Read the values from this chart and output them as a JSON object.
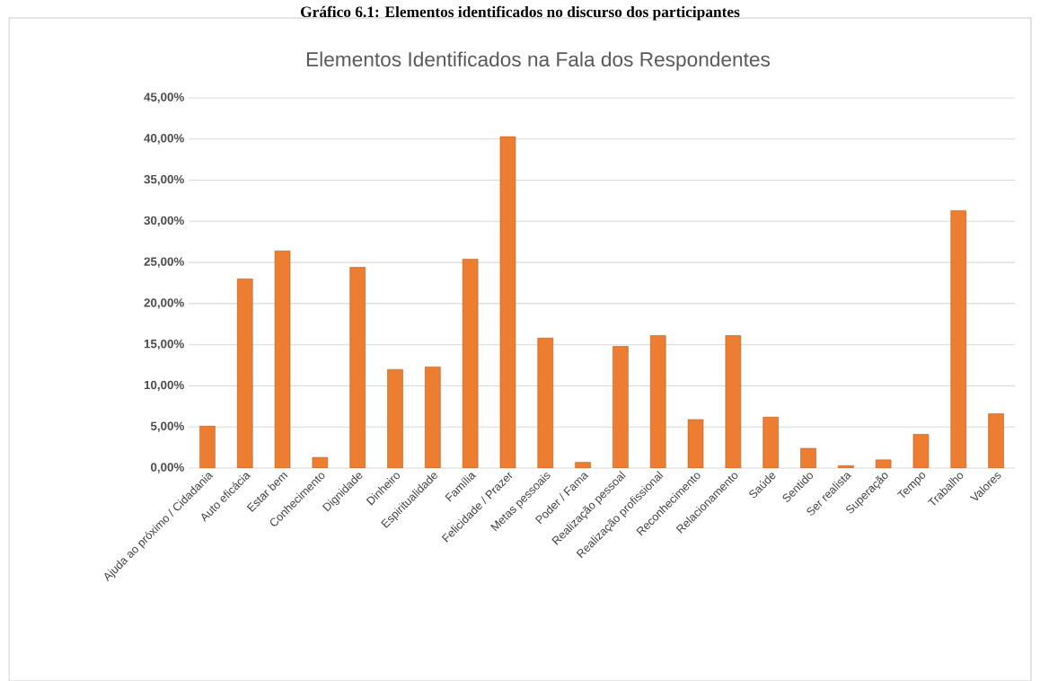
{
  "chart_data": {
    "type": "bar",
    "title": "Elementos Identificados na Fala dos Respondentes",
    "annotations": [
      "Gráfico 6.1: Elementos identificados no discurso dos participantes"
    ],
    "categories": [
      "Ajuda ao próximo / Cidadania",
      "Auto eficácia",
      "Estar bem",
      "Conhecimento",
      "Dignidade",
      "Dinheiro",
      "Espiritualidade",
      "Família",
      "Felicidade / Prazer",
      "Metas pessoais",
      "Poder / Fama",
      "Realização pessoal",
      "Realização profissional",
      "Reconhecimento",
      "Relacionamento",
      "Saúde",
      "Sentido",
      "Ser realista",
      "Superação",
      "Tempo",
      "Trabalho",
      "Valores"
    ],
    "values": [
      5.1,
      23.0,
      26.4,
      1.3,
      24.4,
      12.0,
      12.3,
      25.4,
      40.3,
      15.8,
      0.7,
      14.8,
      16.1,
      5.9,
      16.1,
      6.2,
      2.4,
      0.3,
      1.0,
      4.1,
      31.3,
      6.6
    ],
    "color": "#ed7d31",
    "ylim": [
      0,
      45
    ],
    "yticks": [
      {
        "value": 0,
        "label": "0,00%"
      },
      {
        "value": 5,
        "label": "5,00%"
      },
      {
        "value": 10,
        "label": "10,00%"
      },
      {
        "value": 15,
        "label": "15,00%"
      },
      {
        "value": 20,
        "label": "20,00%"
      },
      {
        "value": 25,
        "label": "25,00%"
      },
      {
        "value": 30,
        "label": "30,00%"
      },
      {
        "value": 35,
        "label": "35,00%"
      },
      {
        "value": 40,
        "label": "40,00%"
      },
      {
        "value": 45,
        "label": "45,00%"
      }
    ],
    "grid": "y"
  }
}
